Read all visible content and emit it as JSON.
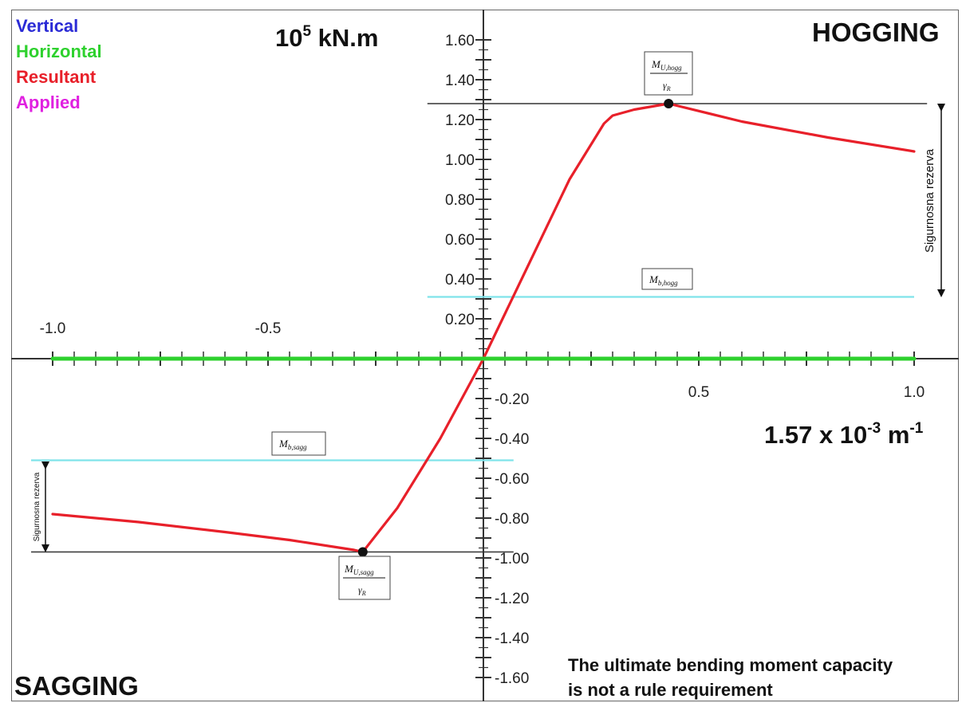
{
  "legend": [
    {
      "label": "Vertical",
      "color": "#2b2bd6"
    },
    {
      "label": "Horizontal",
      "color": "#2ed12e"
    },
    {
      "label": "Resultant",
      "color": "#e8202a"
    },
    {
      "label": "Applied",
      "color": "#e020e0"
    }
  ],
  "labels": {
    "y_unit_base": "10",
    "y_unit_exp": "5",
    "y_unit_rest": " kN.m",
    "x_unit_base": "1.57 x 10",
    "x_unit_exp": "-3",
    "x_unit_rest": " m",
    "x_unit_exp2": "-1",
    "hogging": "HOGGING",
    "sagging": "SAGGING",
    "note_line1": "The ultimate bending moment capacity",
    "note_line2": "is not a rule requirement",
    "reserve": "Sigurnosna rezerva",
    "mu_hogg_num": "M",
    "mu_hogg_sub": "U,hogg",
    "mu_den": "γ",
    "mu_den_sub": "R",
    "mu_sagg_num": "M",
    "mu_sagg_sub": "U,sagg",
    "mb_hogg": "M",
    "mb_hogg_sub": "b,hogg",
    "mb_sagg": "M",
    "mb_sagg_sub": "b,sagg"
  },
  "chart_data": {
    "type": "line",
    "title": "",
    "xlabel": "1.57 x 10-3 m-1",
    "ylabel": "10^5 kN.m",
    "xlim": [
      -1.0,
      1.0
    ],
    "ylim": [
      -1.6,
      1.6
    ],
    "x_ticks": [
      "-1.0",
      "-0.5",
      "0.5",
      "1.0"
    ],
    "x_tick_values": [
      -1.0,
      -0.5,
      0.5,
      1.0
    ],
    "y_ticks": [
      "1.60",
      "1.40",
      "1.20",
      "1.00",
      "0.80",
      "0.60",
      "0.40",
      "0.20",
      "-0.20",
      "-0.40",
      "-0.60",
      "-0.80",
      "-1.00",
      "-1.20",
      "-1.40",
      "-1.60"
    ],
    "y_tick_values": [
      1.6,
      1.4,
      1.2,
      1.0,
      0.8,
      0.6,
      0.4,
      0.2,
      -0.2,
      -0.4,
      -0.6,
      -0.8,
      -1.0,
      -1.2,
      -1.4,
      -1.6
    ],
    "series": [
      {
        "name": "Resultant",
        "color": "#e8202a",
        "x": [
          -1.0,
          -0.8,
          -0.6,
          -0.45,
          -0.3,
          -0.28,
          -0.2,
          -0.1,
          0.0,
          0.1,
          0.2,
          0.28,
          0.3,
          0.35,
          0.43,
          0.6,
          0.8,
          1.0
        ],
        "y": [
          -0.78,
          -0.82,
          -0.87,
          -0.91,
          -0.96,
          -0.97,
          -0.75,
          -0.4,
          0.0,
          0.45,
          0.9,
          1.18,
          1.22,
          1.25,
          1.28,
          1.19,
          1.11,
          1.04
        ]
      },
      {
        "name": "Horizontal",
        "color": "#2ed12e",
        "x": [
          -1.0,
          1.0
        ],
        "y": [
          0.0,
          0.0
        ]
      }
    ],
    "points": [
      {
        "name": "MU,hogg/γR",
        "x": 0.43,
        "y": 1.28
      },
      {
        "name": "MU,sagg/γR",
        "x": -0.28,
        "y": -0.97
      }
    ],
    "reference_lines": [
      {
        "name": "Mb,hogg",
        "y": 0.31,
        "x_from": -0.13,
        "x_to": 1.0,
        "color": "#7fe3ea"
      },
      {
        "name": "Mb,sagg",
        "y": -0.51,
        "x_from": -1.05,
        "x_to": 0.07,
        "color": "#7fe3ea"
      },
      {
        "name": "MU,hogg level",
        "y": 1.28,
        "x_from": -0.13,
        "x_to": 1.03,
        "color": "#333333"
      },
      {
        "name": "MU,sagg level",
        "y": -0.97,
        "x_from": -1.05,
        "x_to": 0.07,
        "color": "#333333"
      }
    ],
    "grid": false,
    "legend": "top-left"
  }
}
